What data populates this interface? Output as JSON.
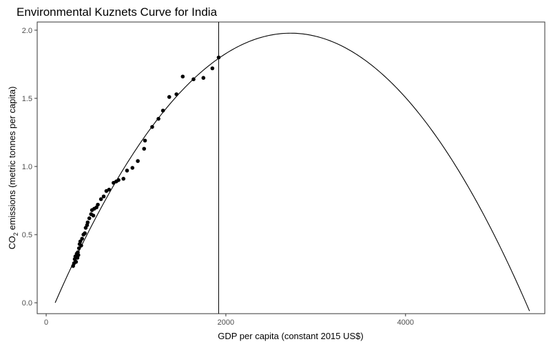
{
  "chart_data": {
    "type": "scatter",
    "title": "Environmental Kuznets Curve for India",
    "xlabel": "GDP per capita (constant 2015 US$)",
    "ylabel_parts": {
      "pre": "CO",
      "sub": "2",
      "post": " emissions (metric tonnes per capita)"
    },
    "xlim": [
      -100,
      5550
    ],
    "ylim": [
      -0.08,
      2.06
    ],
    "x_ticks": [
      {
        "value": 0,
        "label": "0"
      },
      {
        "value": 2000,
        "label": "2000"
      },
      {
        "value": 4000,
        "label": "4000"
      }
    ],
    "y_ticks": [
      {
        "value": 0.0,
        "label": "0.0"
      },
      {
        "value": 0.5,
        "label": "0.5"
      },
      {
        "value": 1.0,
        "label": "1.0"
      },
      {
        "value": 1.5,
        "label": "1.5"
      },
      {
        "value": 2.0,
        "label": "2.0"
      }
    ],
    "grid": false,
    "points": [
      {
        "x": 300,
        "y": 0.27
      },
      {
        "x": 310,
        "y": 0.29
      },
      {
        "x": 318,
        "y": 0.32
      },
      {
        "x": 325,
        "y": 0.34
      },
      {
        "x": 332,
        "y": 0.3
      },
      {
        "x": 340,
        "y": 0.36
      },
      {
        "x": 348,
        "y": 0.33
      },
      {
        "x": 352,
        "y": 0.37
      },
      {
        "x": 358,
        "y": 0.35
      },
      {
        "x": 365,
        "y": 0.4
      },
      {
        "x": 372,
        "y": 0.43
      },
      {
        "x": 380,
        "y": 0.45
      },
      {
        "x": 390,
        "y": 0.42
      },
      {
        "x": 400,
        "y": 0.47
      },
      {
        "x": 415,
        "y": 0.5
      },
      {
        "x": 430,
        "y": 0.51
      },
      {
        "x": 440,
        "y": 0.55
      },
      {
        "x": 455,
        "y": 0.57
      },
      {
        "x": 462,
        "y": 0.59
      },
      {
        "x": 480,
        "y": 0.62
      },
      {
        "x": 500,
        "y": 0.65
      },
      {
        "x": 510,
        "y": 0.68
      },
      {
        "x": 525,
        "y": 0.64
      },
      {
        "x": 535,
        "y": 0.69
      },
      {
        "x": 560,
        "y": 0.7
      },
      {
        "x": 575,
        "y": 0.72
      },
      {
        "x": 610,
        "y": 0.76
      },
      {
        "x": 640,
        "y": 0.78
      },
      {
        "x": 670,
        "y": 0.82
      },
      {
        "x": 700,
        "y": 0.83
      },
      {
        "x": 750,
        "y": 0.88
      },
      {
        "x": 780,
        "y": 0.89
      },
      {
        "x": 805,
        "y": 0.9
      },
      {
        "x": 860,
        "y": 0.91
      },
      {
        "x": 900,
        "y": 0.97
      },
      {
        "x": 960,
        "y": 0.99
      },
      {
        "x": 1020,
        "y": 1.04
      },
      {
        "x": 1090,
        "y": 1.13
      },
      {
        "x": 1100,
        "y": 1.19
      },
      {
        "x": 1180,
        "y": 1.29
      },
      {
        "x": 1250,
        "y": 1.35
      },
      {
        "x": 1300,
        "y": 1.41
      },
      {
        "x": 1370,
        "y": 1.51
      },
      {
        "x": 1450,
        "y": 1.53
      },
      {
        "x": 1520,
        "y": 1.66
      },
      {
        "x": 1640,
        "y": 1.64
      },
      {
        "x": 1750,
        "y": 1.65
      },
      {
        "x": 1850,
        "y": 1.72
      },
      {
        "x": 1920,
        "y": 1.8
      }
    ],
    "fitted_curve": {
      "type": "quadratic",
      "x_range": [
        100,
        5380
      ],
      "vertex_x": 2720,
      "vertex_y": 1.978,
      "zero_x": 100
    },
    "vline_x": 1920,
    "colors": {
      "points": "#000000",
      "curve": "#000000",
      "frame": "#333333"
    }
  }
}
